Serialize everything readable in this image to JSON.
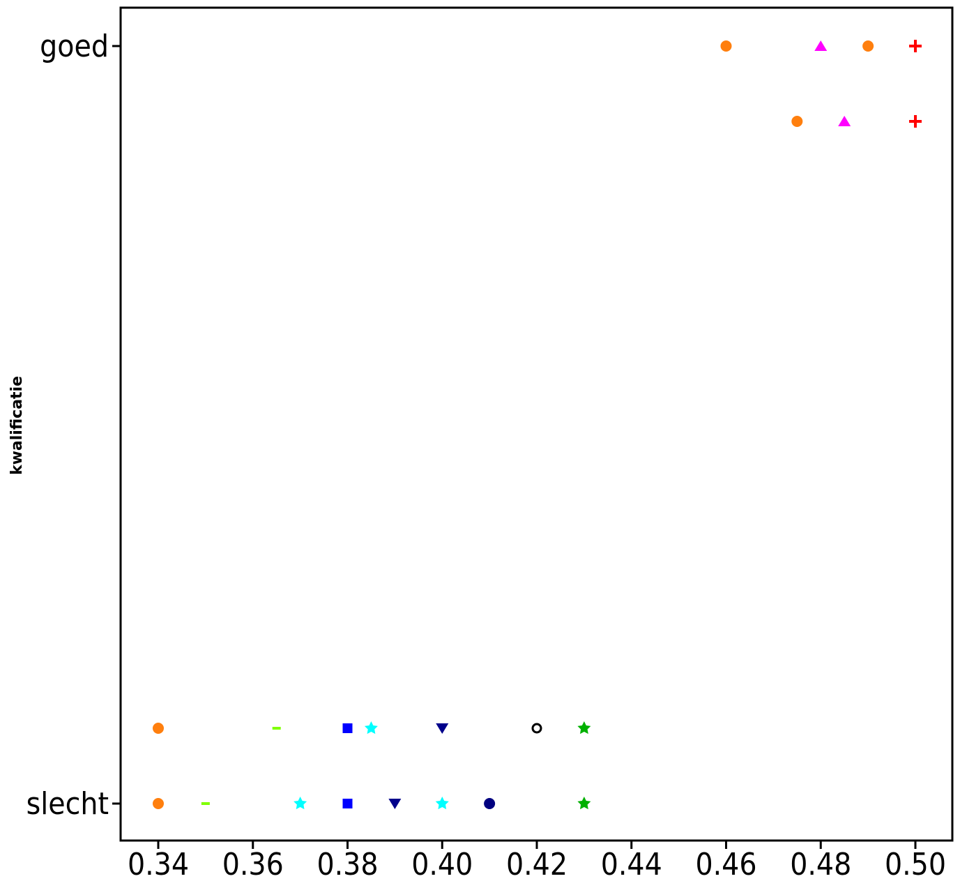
{
  "chart_data": {
    "type": "scatter",
    "title": "",
    "xlabel": "",
    "ylabel": "kwalificatie",
    "xlim": [
      0.332,
      0.5025
    ],
    "x_ticks": [
      0.34,
      0.36,
      0.38,
      0.4,
      0.42,
      0.44,
      0.46,
      0.48,
      0.5
    ],
    "x_tick_labels": [
      "0.34",
      "0.36",
      "0.38",
      "0.40",
      "0.42",
      "0.44",
      "0.46",
      "0.48",
      "0.50"
    ],
    "y_categories": [
      "slecht",
      "goed"
    ],
    "y_tick_labels": [
      "goed",
      "slecht"
    ],
    "grid": false,
    "series": [
      {
        "marker": "circle",
        "color": "#ff7f0e",
        "points": [
          {
            "x": 0.46,
            "y": "goed",
            "offset": 0
          },
          {
            "x": 0.49,
            "y": "goed",
            "offset": 0
          },
          {
            "x": 0.475,
            "y": "goed",
            "offset": 1
          },
          {
            "x": 0.34,
            "y": "slecht",
            "offset": 1
          },
          {
            "x": 0.34,
            "y": "slecht",
            "offset": 0
          }
        ]
      },
      {
        "marker": "triangle-up",
        "color": "#ff00ff",
        "points": [
          {
            "x": 0.48,
            "y": "goed",
            "offset": 0
          },
          {
            "x": 0.485,
            "y": "goed",
            "offset": 1
          }
        ]
      },
      {
        "marker": "plus",
        "color": "#ff0000",
        "points": [
          {
            "x": 0.5,
            "y": "goed",
            "offset": 0
          },
          {
            "x": 0.5,
            "y": "goed",
            "offset": 1
          }
        ]
      },
      {
        "marker": "dash",
        "color": "#7fff00",
        "points": [
          {
            "x": 0.365,
            "y": "slecht",
            "offset": 1
          },
          {
            "x": 0.35,
            "y": "slecht",
            "offset": 0
          },
          {
            "x": 0.38,
            "y": "slecht",
            "offset": 0
          }
        ]
      },
      {
        "marker": "square",
        "color": "#0000ff",
        "points": [
          {
            "x": 0.38,
            "y": "slecht",
            "offset": 1
          },
          {
            "x": 0.38,
            "y": "slecht",
            "offset": 0
          }
        ]
      },
      {
        "marker": "star",
        "color": "#00ffff",
        "points": [
          {
            "x": 0.385,
            "y": "slecht",
            "offset": 1
          },
          {
            "x": 0.37,
            "y": "slecht",
            "offset": 0
          },
          {
            "x": 0.4,
            "y": "slecht",
            "offset": 0
          }
        ]
      },
      {
        "marker": "triangle-down",
        "color": "#00008b",
        "points": [
          {
            "x": 0.4,
            "y": "slecht",
            "offset": 1
          },
          {
            "x": 0.39,
            "y": "slecht",
            "offset": 0
          }
        ]
      },
      {
        "marker": "open-circle",
        "color": "#000000",
        "points": [
          {
            "x": 0.42,
            "y": "slecht",
            "offset": 1
          }
        ]
      },
      {
        "marker": "star",
        "color": "#00b000",
        "points": [
          {
            "x": 0.43,
            "y": "slecht",
            "offset": 1
          },
          {
            "x": 0.43,
            "y": "slecht",
            "offset": 0
          }
        ]
      },
      {
        "marker": "circle",
        "color": "#000080",
        "points": [
          {
            "x": 0.41,
            "y": "slecht",
            "offset": 0
          }
        ]
      }
    ]
  }
}
